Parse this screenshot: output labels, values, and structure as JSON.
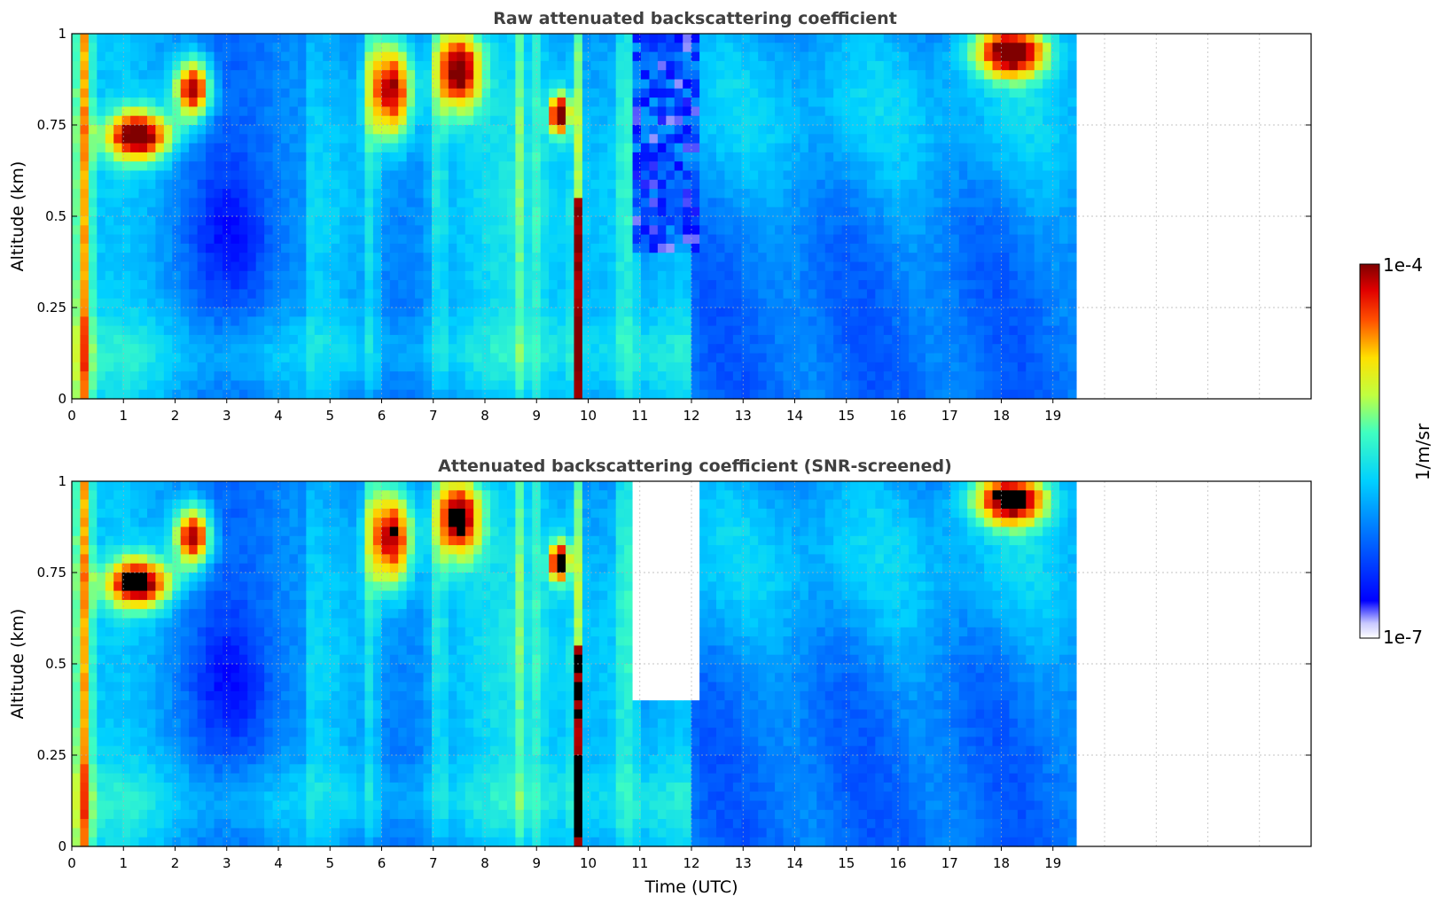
{
  "chart_data": [
    {
      "type": "heatmap",
      "title": "Raw attenuated backscattering coefficient",
      "xlabel": "",
      "ylabel": "Altitude (km)",
      "xlim": [
        0,
        24
      ],
      "ylim": [
        0,
        1
      ],
      "x_ticks": [
        "0",
        "1",
        "2",
        "3",
        "4",
        "5",
        "6",
        "7",
        "8",
        "9",
        "10",
        "11",
        "12",
        "13",
        "14",
        "15",
        "16",
        "17",
        "18",
        "19"
      ],
      "y_ticks": [
        "0",
        "0.25",
        "0.5",
        "0.75",
        "1"
      ],
      "data_extent_x": [
        0,
        19.45
      ],
      "grid": true,
      "colormap": "jet",
      "color_scale": "log",
      "features": [
        {
          "time": [
            0.0,
            0.4
          ],
          "alt": [
            0,
            1
          ],
          "level": "high",
          "desc": "near-vertical strong column"
        },
        {
          "time": [
            0.8,
            1.8
          ],
          "alt": [
            0.65,
            0.8
          ],
          "level": "very high",
          "desc": "cloud layer"
        },
        {
          "time": [
            2.1,
            2.6
          ],
          "alt": [
            0.78,
            0.92
          ],
          "level": "very high",
          "desc": "cloud layer"
        },
        {
          "time": [
            9.3,
            9.6
          ],
          "alt": [
            0.75,
            0.82
          ],
          "level": "very high",
          "desc": "cloud layer"
        },
        {
          "time": [
            9.6,
            9.9
          ],
          "alt": [
            0,
            0.5
          ],
          "level": "very high",
          "desc": "vertical column"
        },
        {
          "time": [
            17.7,
            18.8
          ],
          "alt": [
            0.9,
            1.0
          ],
          "level": "very high",
          "desc": "cloud top"
        },
        {
          "time": [
            11.0,
            12.0
          ],
          "alt": [
            0.4,
            1.0
          ],
          "level": "low/noisy",
          "desc": "noisy region"
        }
      ]
    },
    {
      "type": "heatmap",
      "title": "Attenuated backscattering coefficient (SNR-screened)",
      "xlabel": "Time (UTC)",
      "ylabel": "Altitude (km)",
      "xlim": [
        0,
        24
      ],
      "ylim": [
        0,
        1
      ],
      "x_ticks": [
        "0",
        "1",
        "2",
        "3",
        "4",
        "5",
        "6",
        "7",
        "8",
        "9",
        "10",
        "11",
        "12",
        "13",
        "14",
        "15",
        "16",
        "17",
        "18",
        "19"
      ],
      "y_ticks": [
        "0",
        "0.25",
        "0.5",
        "0.75",
        "1"
      ],
      "data_extent_x": [
        0,
        19.45
      ],
      "grid": true,
      "colormap": "jet",
      "color_scale": "log",
      "features": [
        {
          "time": [
            11.0,
            12.0
          ],
          "alt": [
            0.5,
            1.0
          ],
          "level": "screened",
          "desc": "white screened region"
        },
        {
          "time": [
            9.3,
            9.6
          ],
          "alt": [
            0.76,
            0.82
          ],
          "level": "saturated",
          "desc": "black saturated patch"
        },
        {
          "time": [
            0.8,
            1.8
          ],
          "alt": [
            0.65,
            0.78
          ],
          "level": "saturated",
          "desc": "black saturated patch"
        }
      ]
    }
  ],
  "colorbar": {
    "min_label": "1e-7",
    "max_label": "1e-4",
    "label": "1/m/sr",
    "colormap": "jet"
  }
}
